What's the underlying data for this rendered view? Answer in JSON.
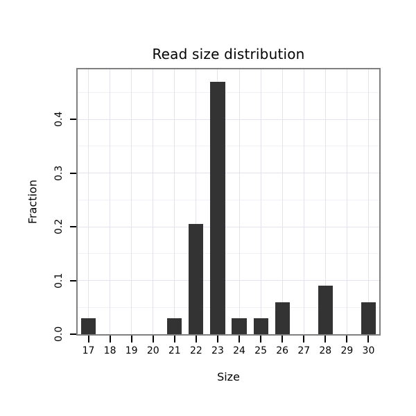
{
  "chart_data": {
    "type": "bar",
    "title": "Read size distribution",
    "xlabel": "Size",
    "ylabel": "Fraction",
    "categories": [
      "17",
      "18",
      "19",
      "20",
      "21",
      "22",
      "23",
      "24",
      "25",
      "26",
      "27",
      "28",
      "29",
      "30"
    ],
    "values": [
      0.03,
      0,
      0,
      0,
      0.03,
      0.205,
      0.47,
      0.03,
      0.03,
      0.06,
      0,
      0.09,
      0,
      0.06
    ],
    "ylim": [
      0,
      0.493
    ],
    "yticks": [
      0,
      0.1,
      0.2,
      0.3,
      0.4
    ],
    "ytick_labels": [
      "0.0",
      "0.1",
      "0.2",
      "0.3",
      "0.4"
    ],
    "yticks_minor": [
      0.05,
      0.15,
      0.25,
      0.35,
      0.45
    ],
    "grid": "on",
    "legend": "none",
    "colors": {
      "bar": "#333333",
      "panel_border": "#7f7f7f",
      "grid_major": "#e3e3ee",
      "grid_minor": "#f1f1f8",
      "background": "#ffffff",
      "text": "#000000"
    }
  }
}
